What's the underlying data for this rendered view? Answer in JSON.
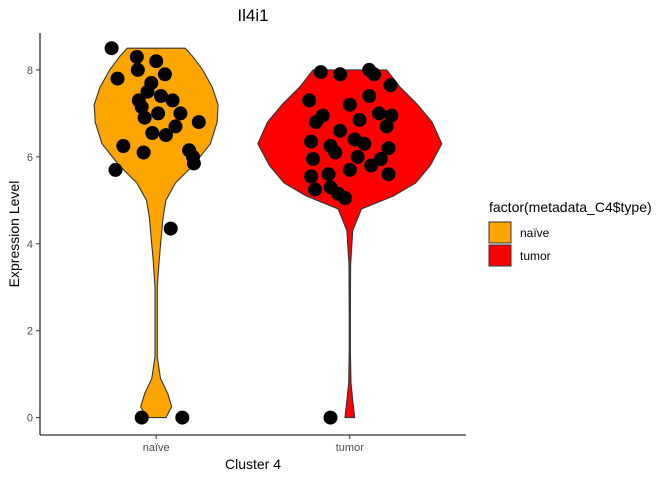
{
  "chart_data": {
    "type": "violin",
    "title": "Il4i1",
    "xlabel": "Cluster 4",
    "ylabel": "Expression Level",
    "ylim": [
      -0.4,
      8.85
    ],
    "yticks": [
      0,
      2,
      4,
      6,
      8
    ],
    "categories": [
      "naïve",
      "tumor"
    ],
    "legend": {
      "title": "factor(metadata_C4$type)",
      "position": "right",
      "entries": [
        "naïve",
        "tumor"
      ]
    },
    "colors": {
      "naïve": "#FFA500",
      "tumor": "#FF0000",
      "points": "#000000",
      "outline": "#333333"
    },
    "violins": [
      {
        "name": "naïve",
        "profile": [
          [
            0,
            0.1
          ],
          [
            0.25,
            0.16
          ],
          [
            0.55,
            0.12
          ],
          [
            0.9,
            0.045
          ],
          [
            1.4,
            0.012
          ],
          [
            2.2,
            0.012
          ],
          [
            3.0,
            0.012
          ],
          [
            3.6,
            0.03
          ],
          [
            4.1,
            0.05
          ],
          [
            4.6,
            0.07
          ],
          [
            5.0,
            0.1
          ],
          [
            5.4,
            0.2
          ],
          [
            5.8,
            0.38
          ],
          [
            6.3,
            0.56
          ],
          [
            6.8,
            0.63
          ],
          [
            7.2,
            0.64
          ],
          [
            7.6,
            0.58
          ],
          [
            8.0,
            0.48
          ],
          [
            8.3,
            0.38
          ],
          [
            8.5,
            0.3
          ]
        ],
        "points": [
          [
            -0.46,
            8.5
          ],
          [
            -0.4,
            7.8
          ],
          [
            -0.2,
            8.3
          ],
          [
            -0.19,
            8.0
          ],
          [
            0.0,
            8.2
          ],
          [
            -0.05,
            7.7
          ],
          [
            0.09,
            7.9
          ],
          [
            -0.09,
            7.5
          ],
          [
            0.05,
            7.4
          ],
          [
            -0.18,
            7.3
          ],
          [
            -0.15,
            7.15
          ],
          [
            0.17,
            7.3
          ],
          [
            0.02,
            7.0
          ],
          [
            0.25,
            7.0
          ],
          [
            -0.12,
            6.9
          ],
          [
            0.44,
            6.8
          ],
          [
            0.2,
            6.7
          ],
          [
            -0.04,
            6.55
          ],
          [
            0.1,
            6.5
          ],
          [
            -0.34,
            6.25
          ],
          [
            -0.13,
            6.1
          ],
          [
            0.34,
            6.15
          ],
          [
            0.38,
            6.0
          ],
          [
            0.39,
            5.85
          ],
          [
            -0.42,
            5.7
          ],
          [
            0.15,
            4.35
          ],
          [
            -0.15,
            0
          ],
          [
            0.27,
            0
          ]
        ]
      },
      {
        "name": "tumor",
        "profile": [
          [
            0,
            0.05
          ],
          [
            0.4,
            0.03
          ],
          [
            0.8,
            0.012
          ],
          [
            1.5,
            0.006
          ],
          [
            2.5,
            0.006
          ],
          [
            3.5,
            0.008
          ],
          [
            4.3,
            0.03
          ],
          [
            4.8,
            0.12
          ],
          [
            5.1,
            0.45
          ],
          [
            5.4,
            0.68
          ],
          [
            5.8,
            0.83
          ],
          [
            6.3,
            0.95
          ],
          [
            6.8,
            0.85
          ],
          [
            7.2,
            0.7
          ],
          [
            7.6,
            0.52
          ],
          [
            8.0,
            0.38
          ]
        ],
        "points": [
          [
            -0.42,
            7.3
          ],
          [
            -0.3,
            7.95
          ],
          [
            -0.1,
            7.9
          ],
          [
            0.2,
            8.0
          ],
          [
            0.25,
            7.9
          ],
          [
            0.42,
            7.65
          ],
          [
            -0.28,
            6.95
          ],
          [
            0.0,
            7.2
          ],
          [
            0.2,
            7.4
          ],
          [
            0.3,
            7.0
          ],
          [
            0.43,
            6.95
          ],
          [
            -0.35,
            6.8
          ],
          [
            -0.1,
            6.6
          ],
          [
            0.1,
            6.85
          ],
          [
            0.38,
            6.7
          ],
          [
            -0.4,
            6.35
          ],
          [
            -0.2,
            6.25
          ],
          [
            0.05,
            6.4
          ],
          [
            0.15,
            6.3
          ],
          [
            0.4,
            6.2
          ],
          [
            -0.38,
            5.95
          ],
          [
            -0.15,
            6.1
          ],
          [
            0.08,
            6.0
          ],
          [
            0.32,
            5.95
          ],
          [
            -0.4,
            5.55
          ],
          [
            -0.22,
            5.6
          ],
          [
            0.0,
            5.7
          ],
          [
            0.22,
            5.8
          ],
          [
            0.4,
            5.6
          ],
          [
            -0.36,
            5.25
          ],
          [
            -0.2,
            5.3
          ],
          [
            -0.12,
            5.15
          ],
          [
            -0.05,
            5.05
          ],
          [
            -0.2,
            0
          ]
        ]
      }
    ]
  }
}
